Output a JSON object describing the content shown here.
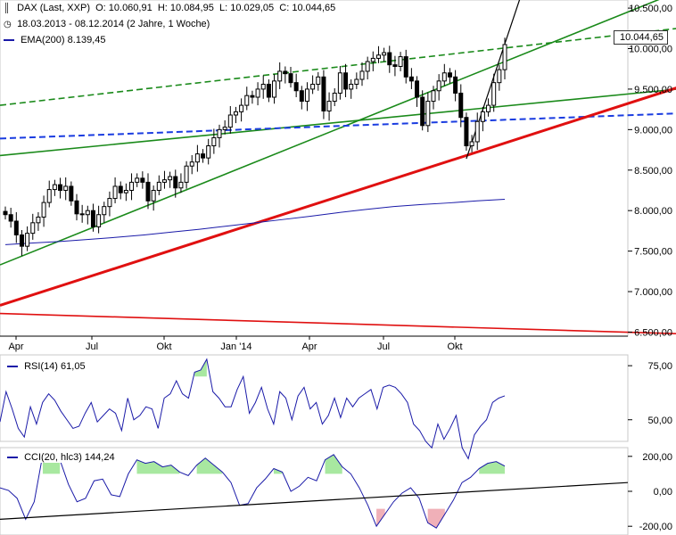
{
  "header": {
    "title": "DAX (Last, XXP)",
    "open": "O: 10.060,91",
    "high": "H: 10.084,95",
    "low": "L: 10.029,05",
    "close": "C: 10.044,65",
    "range": "18.03.2013 - 08.12.2014 (2 Jahre, 1 Woche)",
    "ema_label": "EMA(200)",
    "ema_value": "8.139,45"
  },
  "last_price_tag": "10.044,65",
  "colors": {
    "candle": "#000000",
    "ema": "#1a1aa8",
    "trend_green": "#1a8a1a",
    "trend_red": "#e01010",
    "trend_blue": "#1a3ce0",
    "rsi_fill": "#a8e8a0",
    "cci_neg_fill": "#f0b0b8"
  },
  "chart_data": [
    {
      "type": "candlestick",
      "title": "DAX (Last, XXP)",
      "x_ticks": [
        "Apr",
        "Jul",
        "Okt",
        "Jan '14",
        "Apr",
        "Jul",
        "Okt"
      ],
      "y_ticks": [
        "10.500,00",
        "10.000,00",
        "9.500,00",
        "9.000,00",
        "8.500,00",
        "8.000,00",
        "7.500,00",
        "7.000,00",
        "6.500,00"
      ],
      "y_tick_values": [
        10500,
        10000,
        9500,
        9000,
        8500,
        8000,
        7500,
        7000,
        6500
      ],
      "ylim": [
        6450,
        10600
      ],
      "grid": false,
      "weekly_close": [
        7950,
        7870,
        7700,
        7560,
        7720,
        7850,
        7920,
        8100,
        8260,
        8320,
        8250,
        8300,
        8120,
        7960,
        7950,
        8000,
        7800,
        7950,
        8050,
        8150,
        8300,
        8220,
        8250,
        8350,
        8400,
        8350,
        8120,
        8250,
        8350,
        8380,
        8420,
        8280,
        8350,
        8550,
        8600,
        8700,
        8650,
        8800,
        8900,
        9000,
        9030,
        9180,
        9220,
        9300,
        9420,
        9400,
        9500,
        9560,
        9400,
        9600,
        9720,
        9690,
        9580,
        9480,
        9350,
        9500,
        9560,
        9650,
        9230,
        9350,
        9450,
        9700,
        9500,
        9560,
        9620,
        9720,
        9840,
        9880,
        9920,
        9950,
        9800,
        9780,
        9900,
        9650,
        9600,
        9400,
        9050,
        9350,
        9480,
        9600,
        9700,
        9650,
        9450,
        9150,
        8800,
        8850,
        9100,
        9220,
        9300,
        9580,
        9740,
        10050
      ],
      "ema200": [
        7580,
        7600,
        7620,
        7645,
        7670,
        7700,
        7735,
        7770,
        7810,
        7850,
        7890,
        7930,
        7975,
        8015,
        8050,
        8075,
        8095,
        8120,
        8139.45
      ],
      "trendlines": [
        {
          "color": "green",
          "style": "solid",
          "from": [
            "Mar 2013",
            7330
          ],
          "to": [
            "Dec 2014",
            10700
          ]
        },
        {
          "color": "green",
          "style": "solid",
          "from": [
            "Mar 2013",
            8680
          ],
          "to": [
            "Dec 2014",
            9500
          ]
        },
        {
          "color": "green",
          "style": "dashed",
          "from": [
            "Mar 2013",
            9300
          ],
          "to": [
            "Dec 2014",
            10250
          ]
        },
        {
          "color": "blue",
          "style": "dashed",
          "from": [
            "Mar 2013",
            8890
          ],
          "to": [
            "Dec 2014",
            9200
          ]
        },
        {
          "color": "red",
          "style": "solid",
          "from": [
            "Mar 2013",
            6830
          ],
          "to": [
            "Dec 2014",
            9520
          ]
        },
        {
          "color": "red",
          "style": "solid",
          "from": [
            "Mar 2013",
            6730
          ],
          "to": [
            "Dec 2014",
            6480
          ]
        }
      ]
    },
    {
      "type": "line",
      "title": "RSI(14)",
      "value_label": "61,05",
      "y_ticks": [
        "75,00",
        "50,00"
      ],
      "y_tick_values": [
        75,
        50
      ],
      "ylim": [
        40,
        80
      ],
      "values": [
        49,
        63,
        55,
        46,
        42,
        56,
        48,
        58,
        62,
        59,
        54,
        50,
        46,
        47,
        53,
        58,
        49,
        52,
        55,
        53,
        45,
        60,
        50,
        52,
        56,
        55,
        46,
        60,
        62,
        68,
        62,
        60,
        72,
        73,
        78,
        63,
        60,
        56,
        56,
        64,
        70,
        53,
        58,
        65,
        55,
        48,
        63,
        60,
        50,
        61,
        65,
        55,
        58,
        48,
        52,
        60,
        51,
        60,
        56,
        60,
        62,
        64,
        55,
        65,
        66,
        65,
        62,
        58,
        48,
        45,
        40,
        37,
        48,
        41,
        46,
        52,
        37,
        32,
        43,
        47,
        50,
        58,
        60,
        61.05
      ]
    },
    {
      "type": "line",
      "title": "CCI(20, hlc3)",
      "value_label": "144,24",
      "y_ticks": [
        "200,00",
        "0,00",
        "-200,00"
      ],
      "y_tick_values": [
        200,
        0,
        -200
      ],
      "ylim": [
        -250,
        250
      ],
      "values": [
        20,
        5,
        -40,
        -160,
        -60,
        210,
        200,
        180,
        40,
        -60,
        -40,
        60,
        70,
        -20,
        -30,
        100,
        180,
        160,
        170,
        140,
        150,
        110,
        90,
        150,
        190,
        150,
        110,
        50,
        -80,
        -70,
        20,
        70,
        130,
        110,
        0,
        30,
        80,
        60,
        180,
        210,
        140,
        100,
        20,
        -80,
        -200,
        -130,
        -60,
        -10,
        20,
        -40,
        -180,
        -210,
        -130,
        -50,
        50,
        80,
        130,
        160,
        170,
        144.24
      ],
      "overlay_line": {
        "from": -160,
        "to": 50
      }
    }
  ]
}
